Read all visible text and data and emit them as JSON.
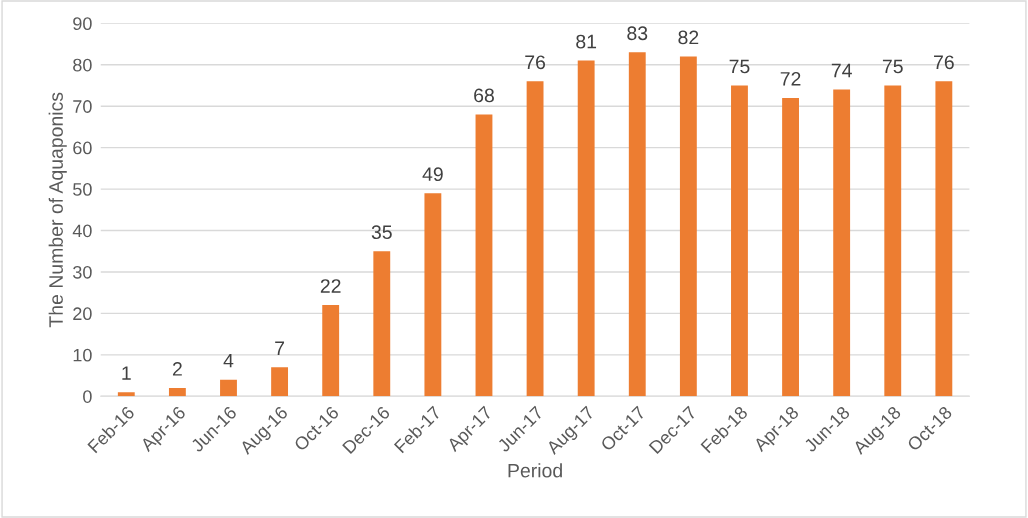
{
  "chart_data": {
    "type": "bar",
    "xlabel": "Period",
    "ylabel": "The Number of Aquaponics",
    "categories": [
      "Feb-16",
      "Apr-16",
      "Jun-16",
      "Aug-16",
      "Oct-16",
      "Dec-16",
      "Feb-17",
      "Apr-17",
      "Jun-17",
      "Aug-17",
      "Oct-17",
      "Dec-17",
      "Feb-18",
      "Apr-18",
      "Jun-18",
      "Aug-18",
      "Oct-18"
    ],
    "values": [
      1,
      2,
      4,
      7,
      22,
      35,
      49,
      68,
      76,
      81,
      83,
      82,
      75,
      72,
      74,
      75,
      76
    ],
    "color": "#ed7d31",
    "ylim": [
      0,
      90
    ],
    "yticks": [
      0,
      10,
      20,
      30,
      40,
      50,
      60,
      70,
      80,
      90
    ],
    "grid": "y",
    "data_labels": true
  }
}
